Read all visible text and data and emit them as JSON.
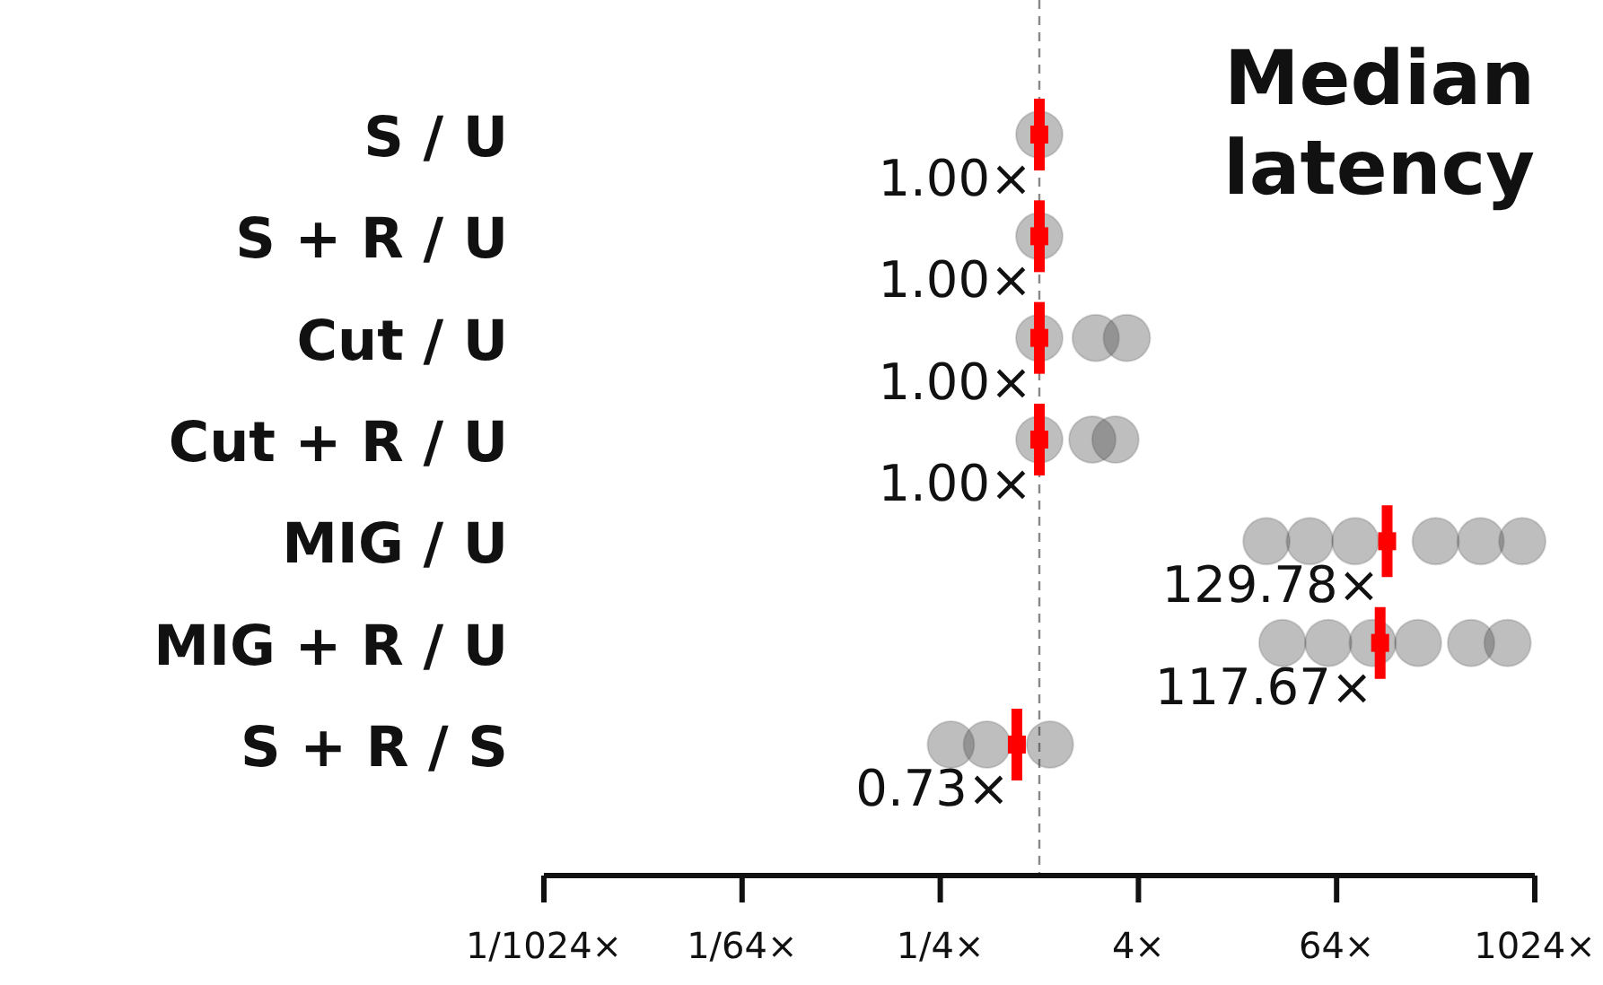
{
  "chart_data": {
    "type": "scatter",
    "orientation": "horizontal",
    "title": "Median latency",
    "log": "x",
    "categories": [
      "S / U",
      "S + R / U",
      "Cut / U",
      "Cut + R / U",
      "MIG / U",
      "MIG + R / U",
      "S + R / S"
    ],
    "xlim": [
      0.0009765625,
      1024
    ],
    "xticks": [
      {
        "value": 0.0009765625,
        "label": "1/1024×"
      },
      {
        "value": 0.015625,
        "label": "1/64×"
      },
      {
        "value": 0.25,
        "label": "1/4×"
      },
      {
        "value": 4,
        "label": "4×"
      },
      {
        "value": 64,
        "label": "64×"
      },
      {
        "value": 1024,
        "label": "1024×"
      }
    ],
    "ref_lines": [
      {
        "axis": "x",
        "value": 1,
        "line_style": "dashed",
        "color": "#888888"
      }
    ],
    "marker": "circle",
    "grid": false,
    "series": [
      {
        "color": "#444444",
        "values": [
          1,
          1,
          1,
          1,
          24,
          30,
          0.29
        ]
      },
      {
        "color": "#444444",
        "values": [
          null,
          null,
          2.2,
          2.1,
          44,
          57,
          0.48
        ]
      },
      {
        "color": "#444444",
        "values": [
          null,
          null,
          3.4,
          2.9,
          83,
          106,
          1.16
        ]
      },
      {
        "color": "#444444",
        "values": [
          null,
          null,
          null,
          null,
          256,
          200,
          null
        ]
      },
      {
        "color": "#444444",
        "values": [
          null,
          null,
          null,
          null,
          480,
          420,
          null
        ]
      },
      {
        "color": "#444444",
        "values": [
          null,
          null,
          null,
          null,
          860,
          700,
          null
        ]
      },
      {
        "marker": "square",
        "color": "#ff0000",
        "values": [
          1,
          1,
          1,
          1,
          129.78,
          117.67,
          0.73
        ],
        "value_labels": [
          "1.00×",
          "1.00×",
          "1.00×",
          "1.00×",
          "129.78×",
          "117.67×",
          "0.73×"
        ]
      }
    ]
  }
}
